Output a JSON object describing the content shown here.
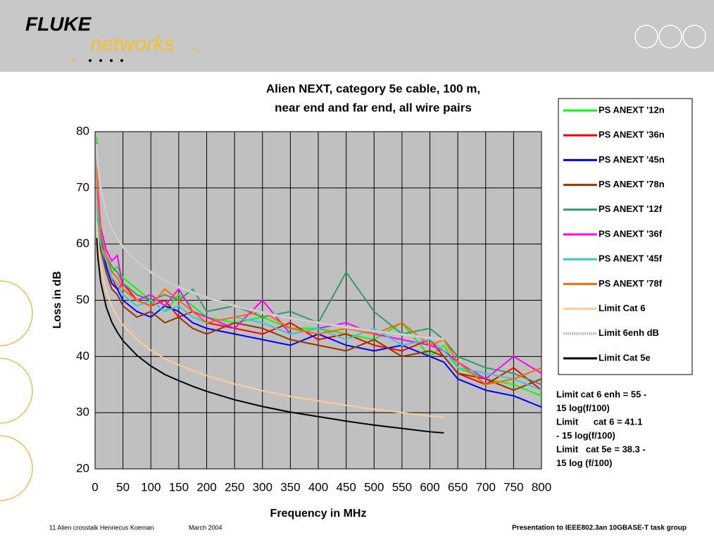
{
  "slide": {
    "logo_top": "FLUKE",
    "logo_bottom": "networks",
    "logo_tm": "TM",
    "footer_left": "11 Alien crosstalk Henriecus Koeman",
    "footer_date": "March 2004",
    "footer_right": "Presentation to IEEE802.3an 10GBASE-T task group"
  },
  "chart_data": {
    "type": "line",
    "title": [
      "Alien NEXT, category 5e cable, 100 m,",
      "near end and far end, all wire pairs"
    ],
    "x_label": "Frequency in MHz",
    "y_label": "Loss in dB",
    "annotation": [
      "Limit cat 6 enh = 55 -",
      "15 log(f/100)",
      "Limit      cat 6 = 41.1",
      "- 15 log(f/100)",
      "Limit   cat 5e = 38.3 -",
      "15 log (f/100)"
    ],
    "xlim": [
      0,
      800
    ],
    "xticks": [
      0,
      50,
      100,
      150,
      200,
      250,
      300,
      350,
      400,
      450,
      500,
      550,
      600,
      650,
      700,
      750,
      800
    ],
    "ylim": [
      20,
      80
    ],
    "yticks": [
      20,
      30,
      40,
      50,
      60,
      70,
      80
    ],
    "grid": true,
    "x": [
      3,
      5,
      10,
      20,
      30,
      40,
      50,
      75,
      100,
      125,
      150,
      175,
      200,
      250,
      300,
      350,
      400,
      450,
      500,
      550,
      600,
      625,
      650,
      700,
      750,
      800
    ],
    "series": [
      {
        "name": "PS ANEXT '12n",
        "color": "#00ff00",
        "values": [
          79,
          68,
          62,
          58,
          55,
          56,
          54,
          52,
          50,
          48,
          51,
          49,
          47,
          46,
          47,
          45,
          45,
          44,
          43,
          46,
          40,
          42,
          38,
          36,
          35,
          33
        ]
      },
      {
        "name": "PS ANEXT '36n",
        "color": "#ff0000",
        "values": [
          75,
          66,
          60,
          57,
          54,
          52,
          53,
          50,
          49,
          50,
          47,
          48,
          46,
          45,
          44,
          46,
          43,
          44,
          42,
          41,
          43,
          40,
          37,
          35,
          38,
          34
        ]
      },
      {
        "name": "PS ANEXT '45n",
        "color": "#0000ff",
        "values": [
          76,
          67,
          61,
          56,
          53,
          52,
          50,
          48,
          47,
          49,
          48,
          46,
          45,
          44,
          43,
          42,
          44,
          42,
          41,
          42,
          40,
          39,
          36,
          34,
          33,
          31
        ]
      },
      {
        "name": "PS ANEXT '78n",
        "color": "#993300",
        "values": [
          74,
          65,
          59,
          55,
          52,
          51,
          49,
          47,
          48,
          46,
          47,
          45,
          44,
          46,
          45,
          43,
          42,
          41,
          43,
          40,
          41,
          40,
          37,
          36,
          34,
          36
        ]
      },
      {
        "name": "PS ANEXT '12f",
        "color": "#339966",
        "values": [
          77,
          66,
          61,
          58,
          56,
          55,
          53,
          51,
          50,
          51,
          50,
          52,
          48,
          49,
          47,
          48,
          46,
          55,
          48,
          44,
          45,
          43,
          40,
          38,
          37,
          35
        ]
      },
      {
        "name": "PS ANEXT '36f",
        "color": "#ff00ff",
        "values": [
          78,
          70,
          63,
          59,
          57,
          58,
          52,
          50,
          51,
          49,
          52,
          48,
          47,
          45,
          50,
          44,
          45,
          46,
          44,
          43,
          42,
          41,
          39,
          36,
          40,
          37
        ]
      },
      {
        "name": "PS ANEXT '45f",
        "color": "#33cccc",
        "values": [
          75,
          64,
          60,
          57,
          54,
          53,
          51,
          49,
          50,
          48,
          49,
          47,
          46,
          47,
          46,
          44,
          45,
          43,
          45,
          42,
          43,
          41,
          38,
          37,
          36,
          34
        ]
      },
      {
        "name": "PS ANEXT '78f",
        "color": "#ff6600",
        "values": [
          76,
          68,
          62,
          58,
          55,
          54,
          52,
          50,
          49,
          52,
          50,
          48,
          46,
          47,
          48,
          45,
          44,
          45,
          44,
          46,
          42,
          43,
          39,
          35,
          36,
          38
        ]
      },
      {
        "name": "Limit Cat 6",
        "color": "#ffcc99",
        "values": [
          63.9,
          60.6,
          56.1,
          51.6,
          48.9,
          47.1,
          45.6,
          43.0,
          41.1,
          39.6,
          38.5,
          37.5,
          36.6,
          35.1,
          33.9,
          32.9,
          32.1,
          31.3,
          30.6,
          30.0,
          29.4,
          29.2,
          null,
          null,
          null,
          null
        ]
      },
      {
        "name": "Limit 6enh dB",
        "color": "#c0c0c0",
        "style": "dotted",
        "values": [
          77.8,
          74.5,
          70.0,
          65.5,
          62.8,
          61.0,
          59.5,
          56.9,
          55.0,
          53.5,
          52.4,
          51.4,
          50.5,
          49.0,
          47.8,
          46.8,
          46.0,
          45.2,
          44.5,
          43.9,
          43.3,
          43.1,
          null,
          null,
          null,
          null
        ]
      },
      {
        "name": "Limit Cat 5e",
        "color": "#000000",
        "values": [
          61.1,
          57.8,
          53.3,
          48.8,
          46.1,
          44.3,
          42.8,
          40.2,
          38.3,
          36.8,
          35.7,
          34.7,
          33.8,
          32.3,
          31.1,
          30.1,
          29.3,
          28.5,
          27.8,
          27.2,
          26.6,
          26.4,
          null,
          null,
          null,
          null
        ]
      }
    ]
  }
}
